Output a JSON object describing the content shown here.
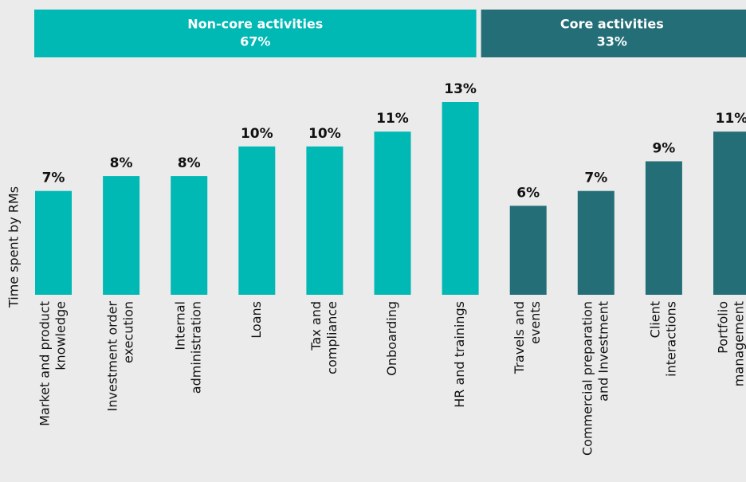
{
  "chart_data": {
    "type": "bar",
    "y_label": "Time spent by RMs",
    "categories": [
      [
        "Market and product",
        "knowledge"
      ],
      [
        "Investment order",
        "execution"
      ],
      [
        "Internal",
        "administration"
      ],
      [
        "Loans"
      ],
      [
        "Tax and",
        "compliance"
      ],
      [
        "Onboarding"
      ],
      [
        "HR and trainings"
      ],
      [
        "Travels and",
        "events"
      ],
      [
        "Commercial preparation",
        "and Investment"
      ],
      [
        "Client",
        "interactions"
      ],
      [
        "Portfolio",
        "management"
      ]
    ],
    "series": [
      {
        "name": "Non-core activities",
        "total": 67,
        "total_label": "67%",
        "color": "#00b8b4",
        "values": [
          7,
          8,
          8,
          10,
          10,
          11,
          13,
          null,
          null,
          null,
          null
        ],
        "value_labels": [
          "7%",
          "8%",
          "8%",
          "10%",
          "10%",
          "11%",
          "13%",
          null,
          null,
          null,
          null
        ]
      },
      {
        "name": "Core activities",
        "total": 33,
        "total_label": "33%",
        "color": "#236e77",
        "values": [
          null,
          null,
          null,
          null,
          null,
          null,
          null,
          6,
          7,
          9,
          11
        ],
        "value_labels": [
          null,
          null,
          null,
          null,
          null,
          null,
          null,
          "6%",
          "7%",
          "9%",
          "11%"
        ]
      }
    ]
  }
}
